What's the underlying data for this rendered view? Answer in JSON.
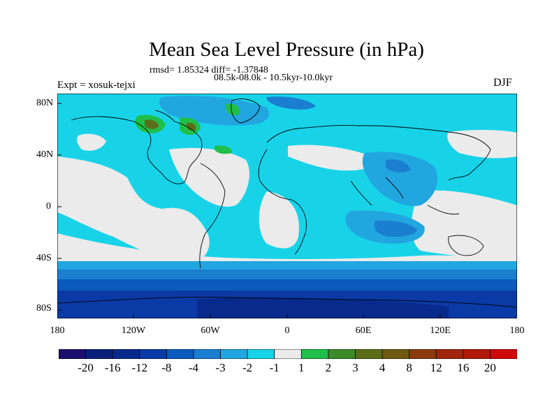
{
  "title": "Mean Sea Level Pressure (in hPa)",
  "stats": "rmsd= 1.85324 diff= -1.37848",
  "period": "08.5k-08.0k - 10.5kyr-10.0kyr",
  "experiment": "Expt = xosuk-tejxi",
  "season": "DJF",
  "lat_labels": [
    "80N",
    "40N",
    "0",
    "40S",
    "80S"
  ],
  "lon_labels": [
    "180",
    "120W",
    "60W",
    "0",
    "60E",
    "120E",
    "180"
  ],
  "colorbar": {
    "colors": [
      "#1c0f6e",
      "#0a1f7a",
      "#082a8c",
      "#0a3aa5",
      "#0a5bbd",
      "#1a7fd1",
      "#22a6e0",
      "#18d3e8",
      "#ebebeb",
      "#1fbf4a",
      "#3d8a2a",
      "#5a6e18",
      "#6e5a10",
      "#8a3a0c",
      "#a0250a",
      "#b01808",
      "#d00a0a"
    ],
    "labels": [
      "-20",
      "-16",
      "-12",
      "-8",
      "-4",
      "-3",
      "-2",
      "-1",
      "1",
      "2",
      "3",
      "4",
      "8",
      "12",
      "16",
      "20"
    ]
  }
}
